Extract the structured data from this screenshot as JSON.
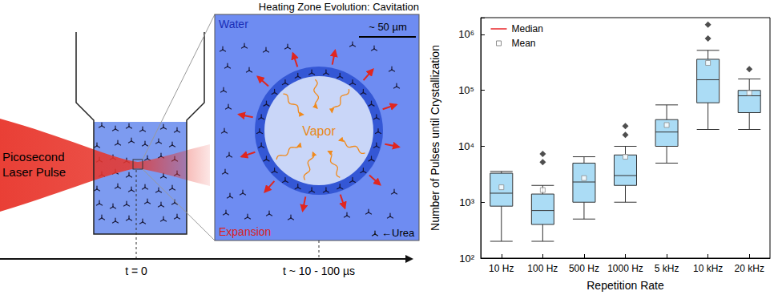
{
  "diagram": {
    "title": "Heating Zone Evolution: Cavitation",
    "laser_label": [
      "Picosecond",
      "Laser Pulse"
    ],
    "medium": "Water",
    "core": "Vapor",
    "motion": "Expansion",
    "scale_bar": "~ 50 µm",
    "solute": "←Urea",
    "time_start": "t = 0",
    "time_later": "t ~ 10 - 100 µs"
  },
  "chart_data": {
    "type": "boxplot",
    "xlabel": "Repetition Rate",
    "ylabel": "Number of Pulses until Crystallization",
    "categories": [
      "10 Hz",
      "100 Hz",
      "500 Hz",
      "1000 Hz",
      "5 kHz",
      "10 kHz",
      "20 kHz"
    ],
    "color": "#abdcf5",
    "boxes": [
      {
        "whisker_low": 200,
        "q1": 850,
        "q3": 3300,
        "whisker_high": 3550,
        "outliers": []
      },
      {
        "whisker_low": 200,
        "q1": 400,
        "q3": 1400,
        "whisker_high": 2000,
        "outliers": [
          5200,
          7300
        ]
      },
      {
        "whisker_low": 500,
        "q1": 1000,
        "q3": 5000,
        "whisker_high": 6500,
        "outliers": []
      },
      {
        "whisker_low": 1000,
        "q1": 2000,
        "q3": 7000,
        "whisker_high": 10000,
        "outliers": [
          16000,
          23000
        ]
      },
      {
        "whisker_low": 5000,
        "q1": 10000,
        "q3": 30000,
        "whisker_high": 55000,
        "outliers": []
      },
      {
        "whisker_low": 20000,
        "q1": 60000,
        "q3": 360000,
        "whisker_high": 520000,
        "outliers": [
          850000,
          1500000
        ]
      },
      {
        "whisker_low": 20000,
        "q1": 40000,
        "q3": 100000,
        "whisker_high": 160000,
        "outliers": [
          240000
        ]
      }
    ],
    "series": [
      {
        "name": "Median",
        "color": "#e8262a",
        "marker": "line",
        "values": [
          1450,
          710,
          2300,
          3000,
          18000,
          155000,
          80000
        ]
      },
      {
        "name": "Mean",
        "color": "#8c8c8c",
        "marker": "square",
        "values": [
          1850,
          1650,
          2700,
          6500,
          24000,
          310000,
          90000
        ]
      }
    ],
    "log": "y",
    "ylim": [
      100,
      2000000
    ],
    "yticks": [
      {
        "value": 100,
        "label": "10²"
      },
      {
        "value": 1000,
        "label": "10³"
      },
      {
        "value": 10000,
        "label": "10⁴"
      },
      {
        "value": 100000,
        "label": "10⁵"
      },
      {
        "value": 1000000,
        "label": "10⁶"
      }
    ],
    "grid": false,
    "legend": "upper left"
  }
}
